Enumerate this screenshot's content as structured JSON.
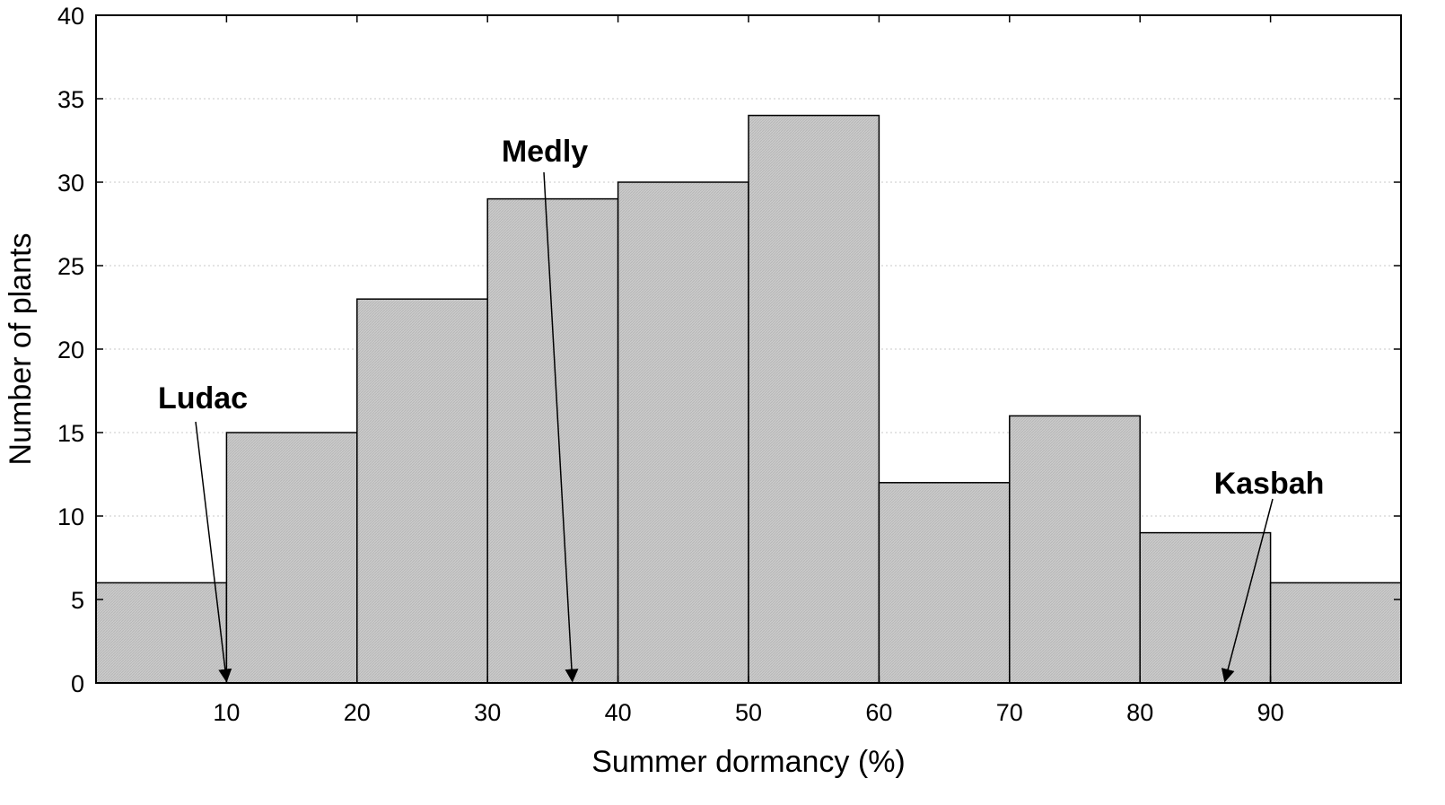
{
  "chart_data": {
    "type": "bar",
    "subtype": "histogram",
    "bins": [
      {
        "x0": 0,
        "x1": 10,
        "count": 6
      },
      {
        "x0": 10,
        "x1": 20,
        "count": 15
      },
      {
        "x0": 20,
        "x1": 30,
        "count": 23
      },
      {
        "x0": 30,
        "x1": 40,
        "count": 29
      },
      {
        "x0": 40,
        "x1": 50,
        "count": 30
      },
      {
        "x0": 50,
        "x1": 60,
        "count": 34
      },
      {
        "x0": 60,
        "x1": 70,
        "count": 12
      },
      {
        "x0": 70,
        "x1": 80,
        "count": 16
      },
      {
        "x0": 80,
        "x1": 90,
        "count": 9
      },
      {
        "x0": 90,
        "x1": 100,
        "count": 6
      }
    ],
    "xlabel": "Summer dormancy (%)",
    "ylabel": "Number of plants",
    "xlim": [
      0,
      100
    ],
    "ylim": [
      0,
      40
    ],
    "xticks": [
      "10",
      "20",
      "30",
      "40",
      "50",
      "60",
      "70",
      "80",
      "90"
    ],
    "yticks": [
      "0",
      "5",
      "10",
      "15",
      "20",
      "25",
      "30",
      "35",
      "40"
    ],
    "grid": "horizontal dotted",
    "bar_color": "#c8c8c8",
    "annotations": [
      {
        "text": "Ludac",
        "value": 10
      },
      {
        "text": "Medly",
        "value": 36.5
      },
      {
        "text": "Kasbah",
        "value": 86.5
      }
    ]
  }
}
